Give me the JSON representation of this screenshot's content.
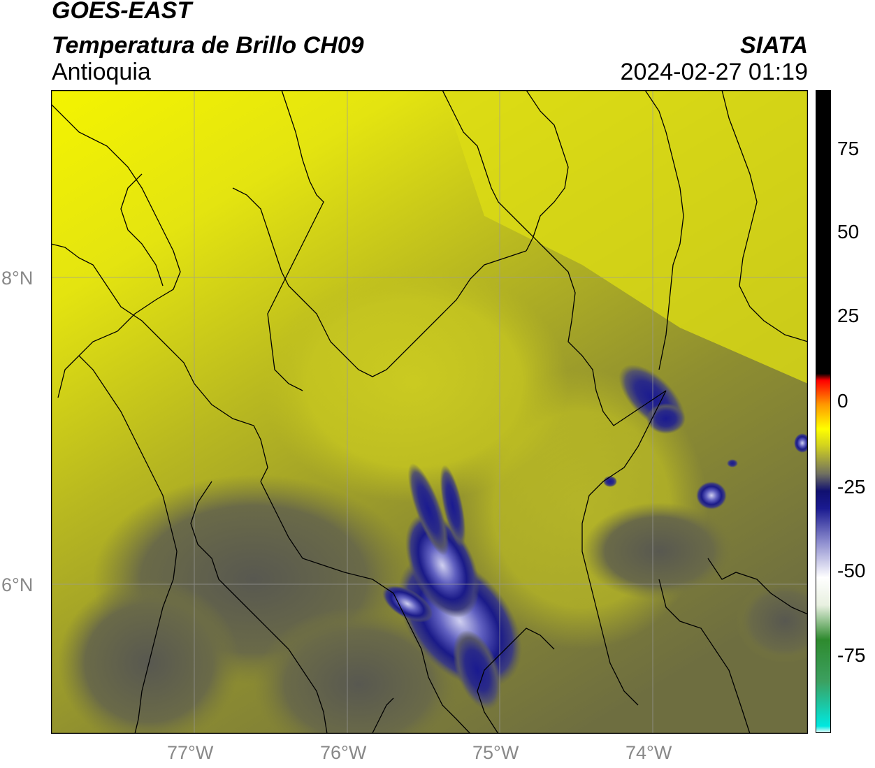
{
  "header": {
    "line1": "GOES-EAST",
    "line2": "Temperatura de Brillo CH09",
    "line3": "Antioquia",
    "org": "SIATA",
    "datetime": "2024-02-27 01:19"
  },
  "axes": {
    "lat_labels": [
      "8°N",
      "6°N"
    ],
    "lon_labels": [
      "77°W",
      "76°W",
      "75°W",
      "74°W"
    ]
  },
  "colorbar": {
    "tick_labels": [
      "75",
      "50",
      "25",
      "0",
      "-25",
      "-50",
      "-75"
    ],
    "range": [
      -95,
      91
    ],
    "stops": [
      {
        "v": -95,
        "c": "#ffffff"
      },
      {
        "v": -93,
        "c": "#00e8e0"
      },
      {
        "v": -80,
        "c": "#3ca060"
      },
      {
        "v": -68,
        "c": "#2e8a2e"
      },
      {
        "v": -58,
        "c": "#e8f0e0"
      },
      {
        "v": -50,
        "c": "#ffffff"
      },
      {
        "v": -40,
        "c": "#9090d0"
      },
      {
        "v": -30,
        "c": "#1a1a90"
      },
      {
        "v": -25,
        "c": "#101070"
      },
      {
        "v": -20,
        "c": "#707060"
      },
      {
        "v": -12,
        "c": "#d0d020"
      },
      {
        "v": -7,
        "c": "#ffff00"
      },
      {
        "v": 0,
        "c": "#ff9900"
      },
      {
        "v": 7,
        "c": "#ff0000"
      },
      {
        "v": 9,
        "c": "#000000"
      },
      {
        "v": 91,
        "c": "#000000"
      }
    ]
  },
  "map_colors": {
    "bright_yellow": "#f4f400",
    "yellow": "#dede12",
    "olive_yellow": "#bdbd1e",
    "olive": "#9a9a2a",
    "dark_olive": "#7a7a3a",
    "grey_olive": "#5e5e4e",
    "convection_dark": "#141477",
    "convection_mid": "#3a3ab0",
    "convection_light": "#b8b8e8"
  }
}
